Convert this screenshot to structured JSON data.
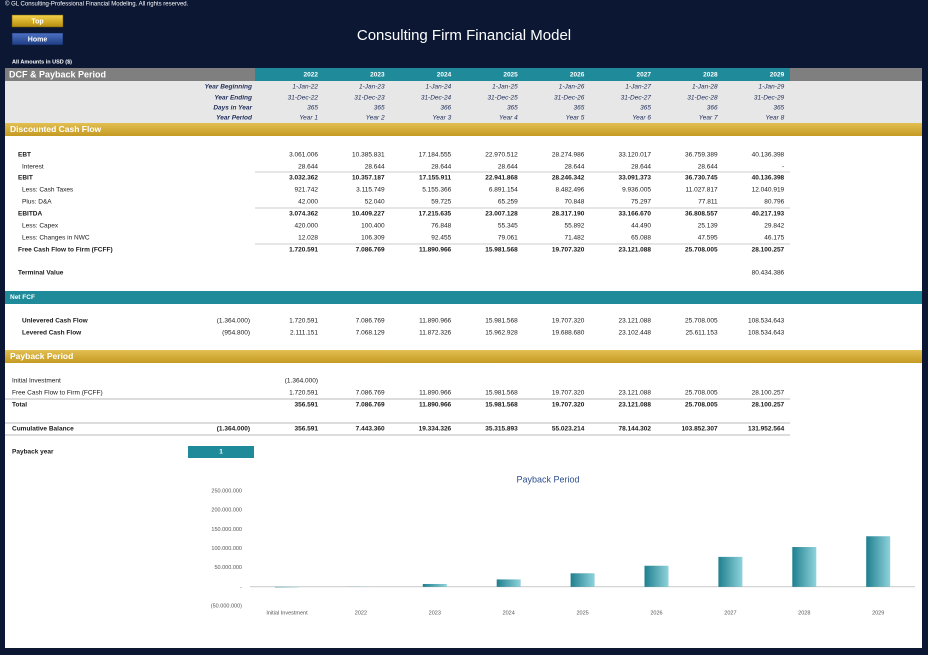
{
  "header": {
    "copyright": "© GL Consulting-Professional Financial Modeling. All rights reserved.",
    "buttons": [
      "Top",
      "Home"
    ],
    "title": "Consulting Firm Financial Model",
    "currency_note": "All Amounts in  USD ($)"
  },
  "sheet": {
    "title": "DCF & Payback Period",
    "years": [
      "2022",
      "2023",
      "2024",
      "2025",
      "2026",
      "2027",
      "2028",
      "2029"
    ],
    "timeline": [
      {
        "label": "Year Beginning",
        "values": [
          "1-Jan-22",
          "1-Jan-23",
          "1-Jan-24",
          "1-Jan-25",
          "1-Jan-26",
          "1-Jan-27",
          "1-Jan-28",
          "1-Jan-29"
        ]
      },
      {
        "label": "Year Ending",
        "values": [
          "31-Dec-22",
          "31-Dec-23",
          "31-Dec-24",
          "31-Dec-25",
          "31-Dec-26",
          "31-Dec-27",
          "31-Dec-28",
          "31-Dec-29"
        ]
      },
      {
        "label": "Days in Year",
        "values": [
          "365",
          "365",
          "366",
          "365",
          "365",
          "365",
          "366",
          "365"
        ]
      },
      {
        "label": "Year Period",
        "values": [
          "Year 1",
          "Year 2",
          "Year 3",
          "Year 4",
          "Year 5",
          "Year 6",
          "Year 7",
          "Year 8"
        ]
      }
    ]
  },
  "sections": [
    {
      "title": "Discounted Cash Flow",
      "rows": [
        {
          "label": "EBT",
          "label_bold": true,
          "values": [
            "3.061.006",
            "10.385.831",
            "17.184.555",
            "22.970.512",
            "28.274.986",
            "33.120.017",
            "36.759.389",
            "40.136.398"
          ]
        },
        {
          "label": "Interest",
          "values": [
            "28.644",
            "28.644",
            "28.644",
            "28.644",
            "28.644",
            "28.644",
            "28.644",
            "-"
          ]
        },
        {
          "label": "EBIT",
          "bold": true,
          "values": [
            "3.032.362",
            "10.357.187",
            "17.155.911",
            "22.941.868",
            "28.246.342",
            "33.091.373",
            "36.730.745",
            "40.136.398"
          ]
        },
        {
          "label": "Less: Cash Taxes",
          "values": [
            "921.742",
            "3.115.749",
            "5.155.366",
            "6.891.154",
            "8.482.496",
            "9.936.005",
            "11.027.817",
            "12.040.919"
          ]
        },
        {
          "label": "Plus: D&A",
          "values": [
            "42.000",
            "52.040",
            "59.725",
            "65.259",
            "70.848",
            "75.297",
            "77.811",
            "80.796"
          ]
        },
        {
          "label": "EBITDA",
          "bold": true,
          "values": [
            "3.074.362",
            "10.409.227",
            "17.215.635",
            "23.007.128",
            "28.317.190",
            "33.166.670",
            "36.808.557",
            "40.217.193"
          ]
        },
        {
          "label": "Less: Capex",
          "values": [
            "420.000",
            "100.400",
            "76.848",
            "55.345",
            "55.892",
            "44.490",
            "25.139",
            "29.842"
          ]
        },
        {
          "label": "Less: Changes in NWC",
          "values": [
            "12.028",
            "106.309",
            "92.455",
            "79.061",
            "71.482",
            "65.088",
            "47.595",
            "46.175"
          ]
        },
        {
          "label": "Free Cash Flow to Firm (FCFF)",
          "bold": true,
          "values": [
            "1.720.591",
            "7.086.769",
            "11.890.966",
            "15.981.568",
            "19.707.320",
            "23.121.088",
            "25.708.005",
            "28.100.257"
          ]
        },
        {
          "label": "Terminal Value",
          "label_bold": true,
          "values": [
            null,
            null,
            null,
            null,
            null,
            null,
            null,
            "80.434.386"
          ]
        }
      ]
    },
    {
      "title": "Net FCF",
      "rows": [
        {
          "label": "Unlevered Cash Flow",
          "label_bold": true,
          "initial": "(1.364.000)",
          "values": [
            "1.720.591",
            "7.086.769",
            "11.890.966",
            "15.981.568",
            "19.707.320",
            "23.121.088",
            "25.708.005",
            "108.534.643"
          ]
        },
        {
          "label": "Levered Cash Flow",
          "label_bold": true,
          "initial": "(954.800)",
          "values": [
            "2.111.151",
            "7.068.129",
            "11.872.326",
            "15.962.928",
            "19.688.680",
            "23.102.448",
            "25.611.153",
            "108.534.643"
          ]
        }
      ]
    },
    {
      "title": "Payback Period",
      "rows": [
        {
          "label": "Initial Investment",
          "values": [
            "(1.364.000)",
            null,
            null,
            null,
            null,
            null,
            null,
            null
          ]
        },
        {
          "label": "Free Cash Flow to Firm (FCFF)",
          "values": [
            "1.720.591",
            "7.086.769",
            "11.890.966",
            "15.981.568",
            "19.707.320",
            "23.121.088",
            "25.708.005",
            "28.100.257"
          ]
        },
        {
          "label": "Total",
          "bold": true,
          "values": [
            "356.591",
            "7.086.769",
            "11.890.966",
            "15.981.568",
            "19.707.320",
            "23.121.088",
            "25.708.005",
            "28.100.257"
          ]
        },
        {
          "label": "Cumulative Balance",
          "bold": true,
          "initial": "(1.364.000)",
          "values": [
            "356.591",
            "7.443.360",
            "19.334.326",
            "35.315.893",
            "55.023.214",
            "78.144.302",
            "103.852.307",
            "131.952.564"
          ]
        }
      ],
      "payback": {
        "label": "Payback year",
        "value": "1"
      }
    }
  ],
  "chart_data": {
    "type": "bar",
    "title": "Payback Period",
    "categories": [
      "Initial Investment",
      "2022",
      "2023",
      "2024",
      "2025",
      "2026",
      "2027",
      "2028",
      "2029"
    ],
    "values": [
      -1364000,
      356591,
      7443360,
      19334326,
      35315893,
      55023214,
      78144302,
      103852307,
      131952564
    ],
    "color": "#1f7f8e",
    "ylim": [
      -50000000,
      250000000
    ],
    "yticks": [
      {
        "value": 250000000,
        "label": "250.000.000"
      },
      {
        "value": 200000000,
        "label": "200.000.000"
      },
      {
        "value": 150000000,
        "label": "150.000.000"
      },
      {
        "value": 100000000,
        "label": "100.000.000"
      },
      {
        "value": 50000000,
        "label": "50.000.000"
      },
      {
        "value": 0,
        "label": "-"
      },
      {
        "value": -50000000,
        "label": "(50.000.000)"
      }
    ]
  }
}
